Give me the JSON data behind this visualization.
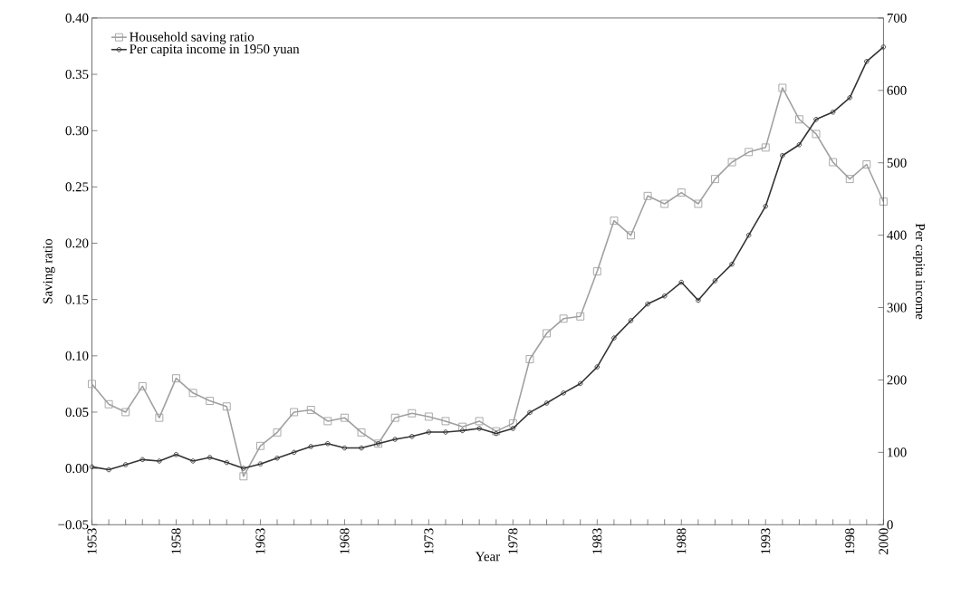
{
  "chart_data": {
    "type": "line",
    "xlabel": "Year",
    "ylabel": "Saving ratio",
    "y2label": "Per capita income",
    "x": [
      1953,
      1954,
      1955,
      1956,
      1957,
      1958,
      1959,
      1960,
      1961,
      1962,
      1963,
      1964,
      1965,
      1966,
      1967,
      1968,
      1969,
      1970,
      1971,
      1972,
      1973,
      1974,
      1975,
      1976,
      1977,
      1978,
      1979,
      1980,
      1981,
      1982,
      1983,
      1984,
      1985,
      1986,
      1987,
      1988,
      1989,
      1990,
      1991,
      1992,
      1993,
      1994,
      1995,
      1996,
      1997,
      1998,
      1999,
      2000
    ],
    "series": [
      {
        "name": "Household saving ratio",
        "color": "#a0a0a0",
        "marker": "square",
        "values": [
          0.075,
          0.057,
          0.05,
          0.073,
          0.045,
          0.08,
          0.067,
          0.06,
          0.055,
          -0.007,
          0.02,
          0.032,
          0.05,
          0.052,
          0.042,
          0.045,
          0.032,
          0.022,
          0.045,
          0.049,
          0.046,
          0.042,
          0.037,
          0.042,
          0.033,
          0.04,
          0.097,
          0.12,
          0.133,
          0.135,
          0.175,
          0.22,
          0.207,
          0.242,
          0.235,
          0.245,
          0.235,
          0.257,
          0.272,
          0.281,
          0.285,
          0.338,
          0.31,
          0.297,
          0.272,
          0.257,
          0.27,
          0.237
        ]
      },
      {
        "name": "Per capita income in 1950 yuan",
        "color": "#333333",
        "marker": "circle",
        "axis": "y2",
        "values": [
          80,
          76,
          83,
          90,
          88,
          97,
          88,
          93,
          86,
          78,
          84,
          92,
          100,
          108,
          112,
          106,
          106,
          112,
          118,
          122,
          128,
          128,
          130,
          133,
          126,
          133,
          155,
          168,
          182,
          195,
          218,
          258,
          282,
          305,
          316,
          335,
          310,
          337,
          360,
          400,
          440,
          510,
          525,
          560,
          570,
          590,
          640,
          660
        ]
      }
    ],
    "xlim": [
      1953,
      2000
    ],
    "xticks": [
      1953,
      {
        "value": 1954,
        "label": null
      },
      {
        "value": 1955,
        "label": null
      },
      {
        "value": 1956,
        "label": null
      },
      {
        "value": 1957,
        "label": null
      },
      1958,
      {
        "value": 1959,
        "label": null
      },
      {
        "value": 1960,
        "label": null
      },
      {
        "value": 1961,
        "label": null
      },
      {
        "value": 1962,
        "label": null
      },
      1963,
      {
        "value": 1964,
        "label": null
      },
      {
        "value": 1965,
        "label": null
      },
      {
        "value": 1966,
        "label": null
      },
      {
        "value": 1967,
        "label": null
      },
      1968,
      {
        "value": 1969,
        "label": null
      },
      {
        "value": 1970,
        "label": null
      },
      {
        "value": 1971,
        "label": null
      },
      {
        "value": 1972,
        "label": null
      },
      1973,
      {
        "value": 1974,
        "label": null
      },
      {
        "value": 1975,
        "label": null
      },
      {
        "value": 1976,
        "label": null
      },
      {
        "value": 1977,
        "label": null
      },
      1978,
      {
        "value": 1979,
        "label": null
      },
      {
        "value": 1980,
        "label": null
      },
      {
        "value": 1981,
        "label": null
      },
      {
        "value": 1982,
        "label": null
      },
      1983,
      {
        "value": 1984,
        "label": null
      },
      {
        "value": 1985,
        "label": null
      },
      {
        "value": 1986,
        "label": null
      },
      {
        "value": 1987,
        "label": null
      },
      1988,
      {
        "value": 1989,
        "label": null
      },
      {
        "value": 1990,
        "label": null
      },
      {
        "value": 1991,
        "label": null
      },
      {
        "value": 1992,
        "label": null
      },
      1993,
      {
        "value": 1994,
        "label": null
      },
      {
        "value": 1995,
        "label": null
      },
      {
        "value": 1996,
        "label": null
      },
      {
        "value": 1997,
        "label": null
      },
      1998,
      {
        "value": 1999,
        "label": null
      },
      2000
    ],
    "ylim": [
      -0.05,
      0.4
    ],
    "yticks": [
      {
        "value": -0.05,
        "label": "−0.05"
      },
      {
        "value": 0,
        "label": "0.00"
      },
      {
        "value": 0.05,
        "label": "0.05"
      },
      {
        "value": 0.1,
        "label": "0.10"
      },
      {
        "value": 0.15,
        "label": "0.15"
      },
      {
        "value": 0.2,
        "label": "0.20"
      },
      {
        "value": 0.25,
        "label": "0.25"
      },
      {
        "value": 0.3,
        "label": "0.30"
      },
      {
        "value": 0.35,
        "label": "0.35"
      },
      {
        "value": 0.4,
        "label": "0.40"
      }
    ],
    "y2lim": [
      0,
      700
    ],
    "y2ticks": [
      0,
      100,
      200,
      300,
      400,
      500,
      600,
      700
    ],
    "legend": "top left",
    "grid": false,
    "line_style": "solid"
  }
}
